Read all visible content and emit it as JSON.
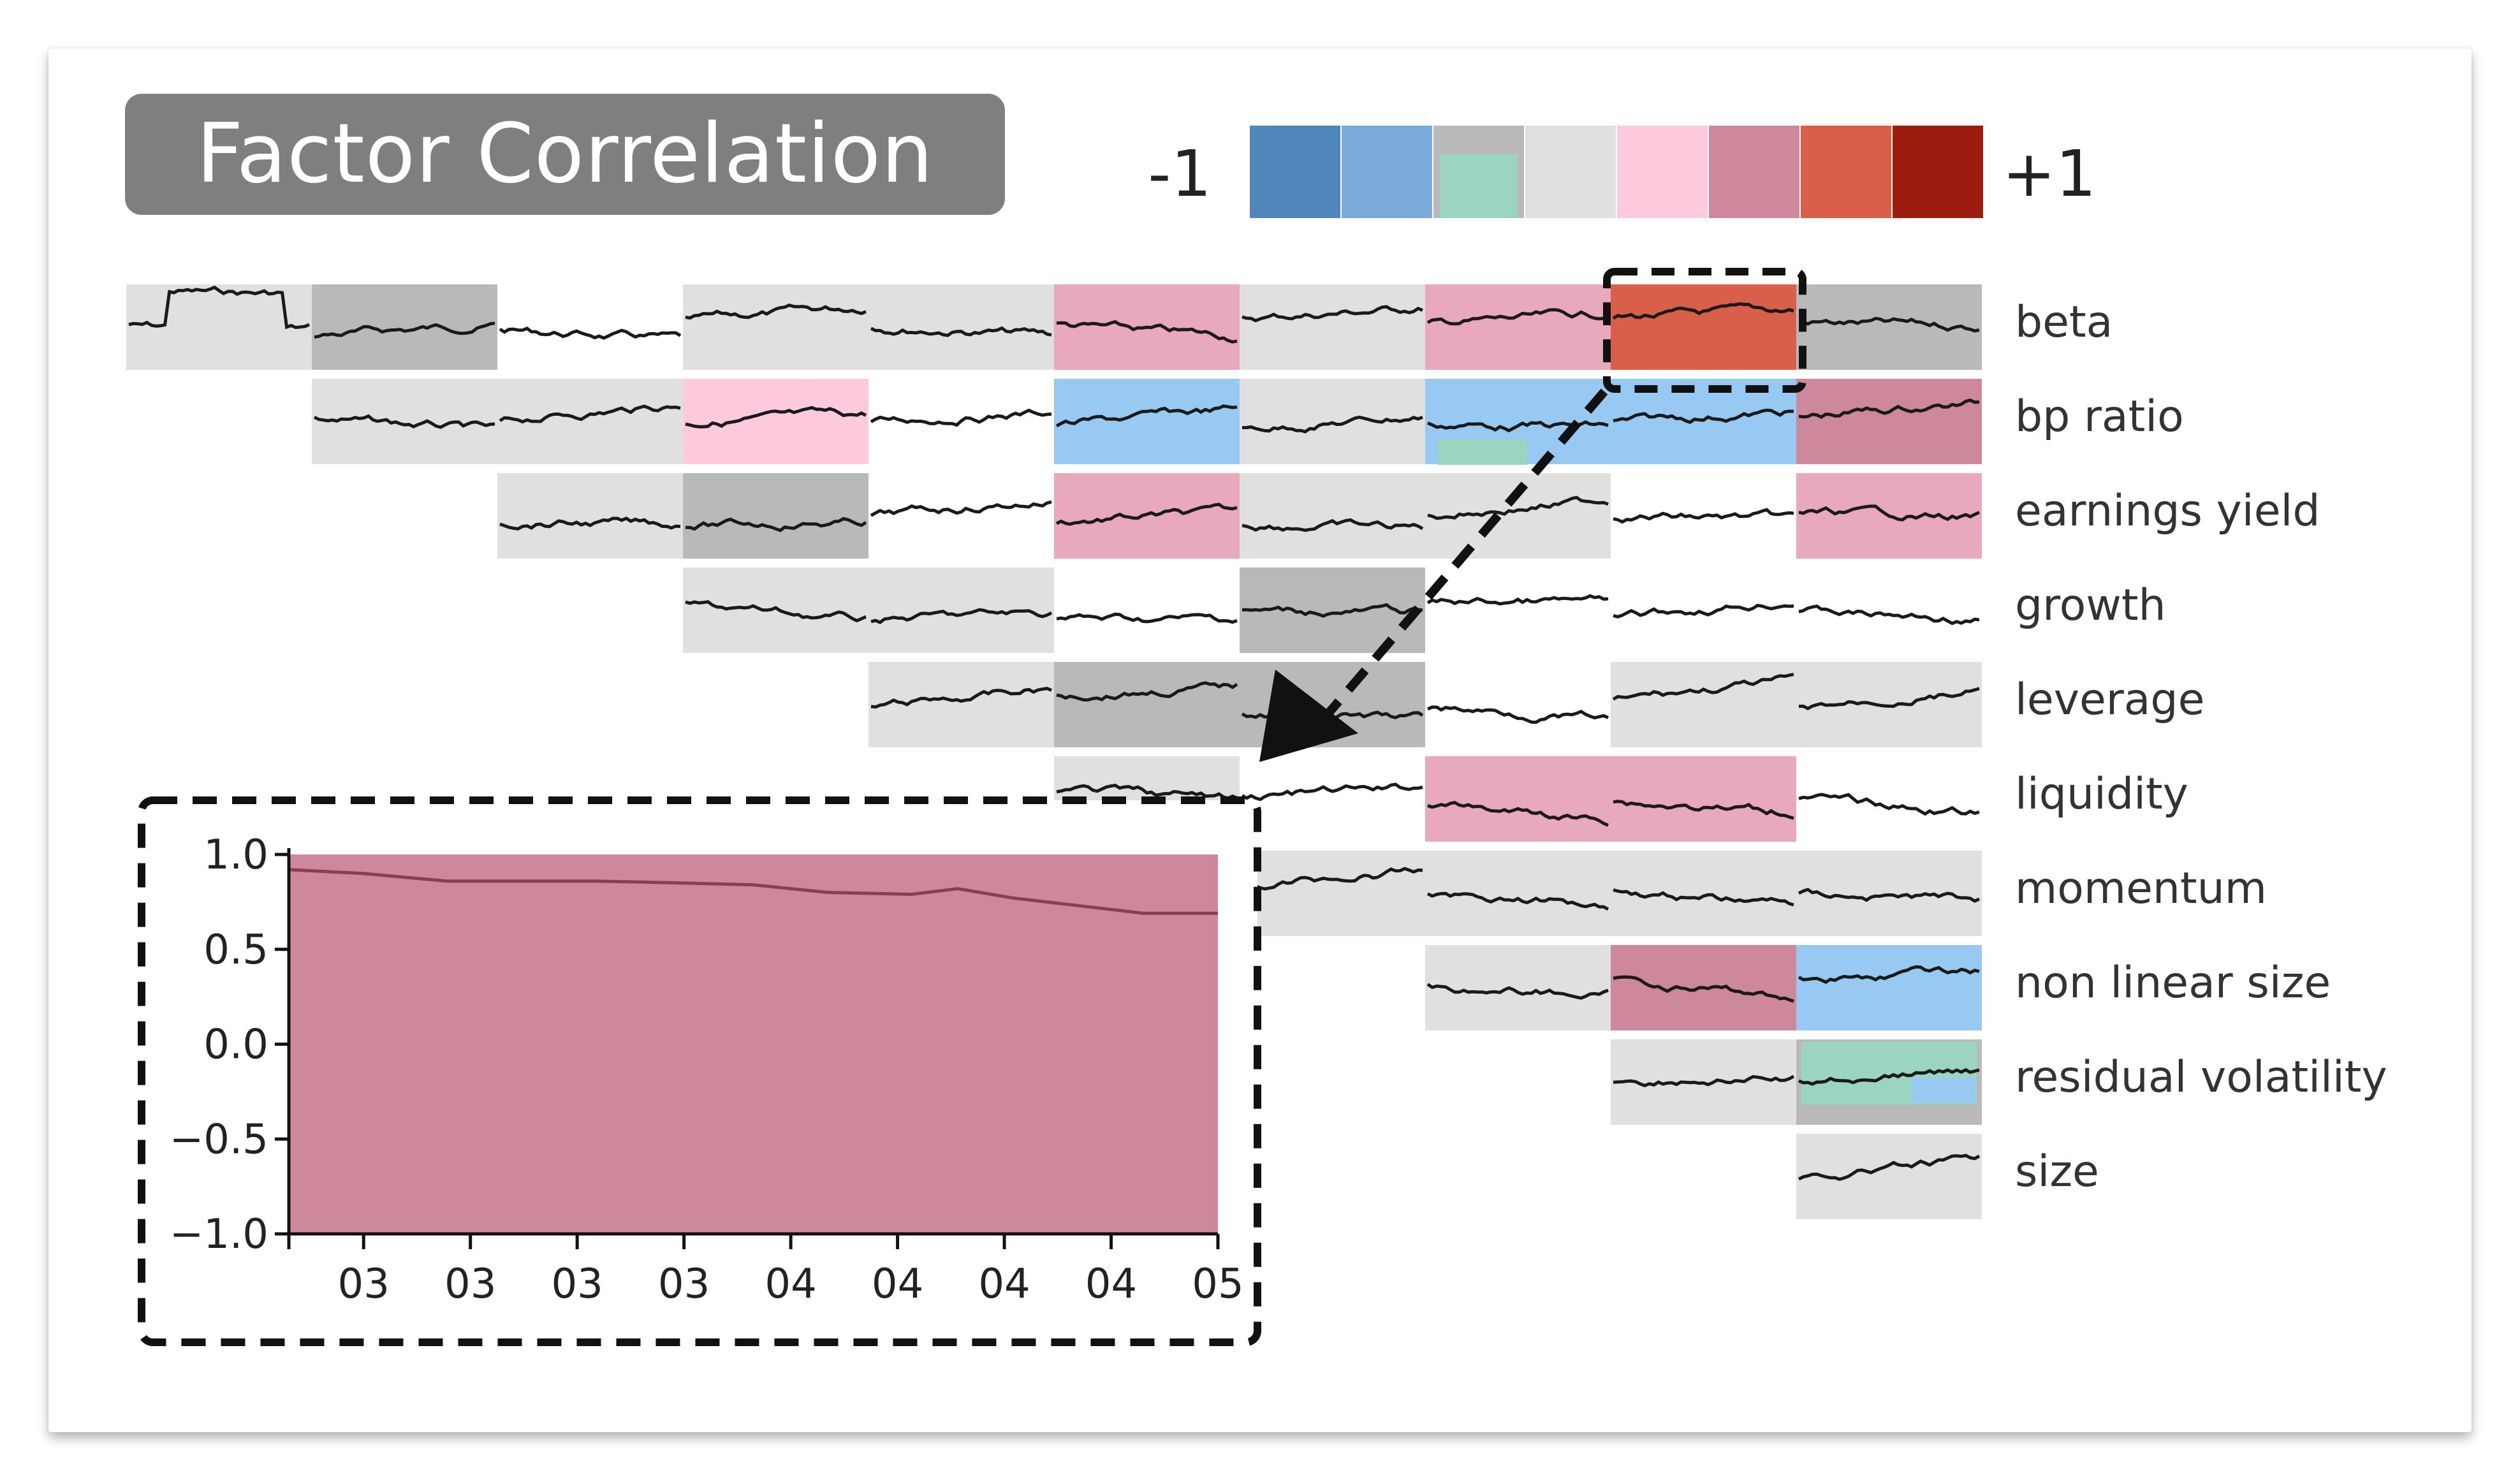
{
  "title": "Factor Correlation",
  "chart_data": [
    {
      "type": "heatmap",
      "title": "Factor Correlation",
      "description_of_cells": "Upper-triangular correlation matrix; each cell colored by correlation bucket and overlaid with a rolling-correlation sparkline.",
      "factors": [
        "beta",
        "bp ratio",
        "earnings yield",
        "growth",
        "leverage",
        "liquidity",
        "momentum",
        "non linear size",
        "residual volatility",
        "size"
      ],
      "color_scale": {
        "min_label": "-1",
        "max_label": "+1",
        "colors": [
          "#5087bb",
          "#79aad9",
          "#b9b9b9",
          "#e0e0e0",
          "#fcc9dd",
          "#cd889c",
          "#d95f4a",
          "#9e1b10"
        ],
        "highlight_colors": {
          "blue_light": "#97c9f2",
          "teal": "#9bd5c0",
          "pink": "#e9a9bd"
        }
      },
      "highlighted_cell": {
        "row": "beta",
        "col": 8
      }
    },
    {
      "type": "area",
      "ylim": [
        -1.0,
        1.0
      ],
      "yticks": [
        "1.0",
        "0.5",
        "0.0",
        "−0.5",
        "−1.0"
      ],
      "xticks": [
        "03",
        "03",
        "03",
        "03",
        "04",
        "04",
        "04",
        "04",
        "05"
      ],
      "x": [
        0,
        0.08,
        0.17,
        0.25,
        0.33,
        0.42,
        0.5,
        0.58,
        0.67,
        0.72,
        0.78,
        0.85,
        0.92,
        1.0
      ],
      "values": [
        0.92,
        0.9,
        0.86,
        0.86,
        0.86,
        0.85,
        0.84,
        0.8,
        0.79,
        0.82,
        0.77,
        0.73,
        0.69,
        0.69
      ],
      "fill_color": "#cd889c",
      "line_color": "#8b3d55"
    }
  ]
}
